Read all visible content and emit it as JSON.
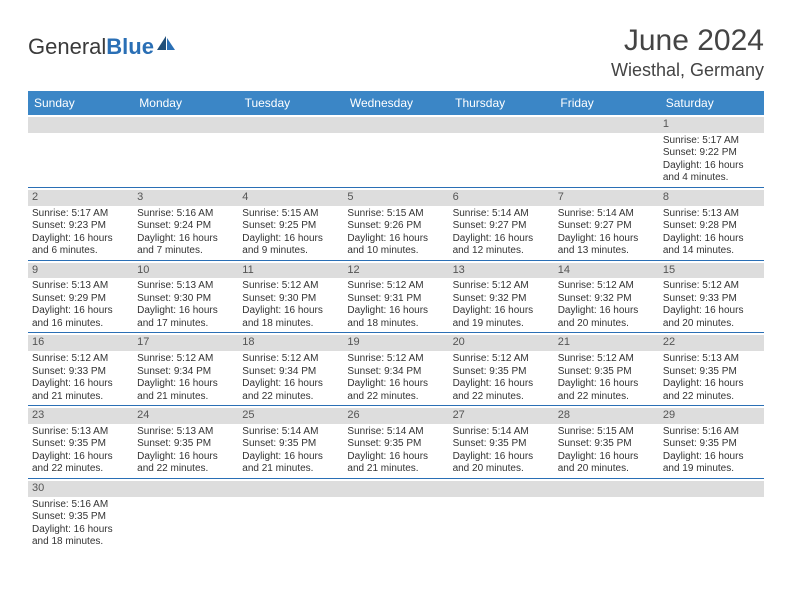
{
  "brand": {
    "textA": "General",
    "textB": "Blue"
  },
  "title": "June 2024",
  "location": "Wiesthal, Germany",
  "weekdays": [
    "Sunday",
    "Monday",
    "Tuesday",
    "Wednesday",
    "Thursday",
    "Friday",
    "Saturday"
  ],
  "colors": {
    "header_bg": "#3b86c6",
    "header_text": "#ffffff",
    "rule": "#2a6fb5",
    "daynum_bg": "#dddddd",
    "text": "#333333"
  },
  "weeks": [
    [
      {
        "blank": true
      },
      {
        "blank": true
      },
      {
        "blank": true
      },
      {
        "blank": true
      },
      {
        "blank": true
      },
      {
        "blank": true
      },
      {
        "n": "1",
        "sunrise": "Sunrise: 5:17 AM",
        "sunset": "Sunset: 9:22 PM",
        "daylight": "Daylight: 16 hours and 4 minutes."
      }
    ],
    [
      {
        "n": "2",
        "sunrise": "Sunrise: 5:17 AM",
        "sunset": "Sunset: 9:23 PM",
        "daylight": "Daylight: 16 hours and 6 minutes."
      },
      {
        "n": "3",
        "sunrise": "Sunrise: 5:16 AM",
        "sunset": "Sunset: 9:24 PM",
        "daylight": "Daylight: 16 hours and 7 minutes."
      },
      {
        "n": "4",
        "sunrise": "Sunrise: 5:15 AM",
        "sunset": "Sunset: 9:25 PM",
        "daylight": "Daylight: 16 hours and 9 minutes."
      },
      {
        "n": "5",
        "sunrise": "Sunrise: 5:15 AM",
        "sunset": "Sunset: 9:26 PM",
        "daylight": "Daylight: 16 hours and 10 minutes."
      },
      {
        "n": "6",
        "sunrise": "Sunrise: 5:14 AM",
        "sunset": "Sunset: 9:27 PM",
        "daylight": "Daylight: 16 hours and 12 minutes."
      },
      {
        "n": "7",
        "sunrise": "Sunrise: 5:14 AM",
        "sunset": "Sunset: 9:27 PM",
        "daylight": "Daylight: 16 hours and 13 minutes."
      },
      {
        "n": "8",
        "sunrise": "Sunrise: 5:13 AM",
        "sunset": "Sunset: 9:28 PM",
        "daylight": "Daylight: 16 hours and 14 minutes."
      }
    ],
    [
      {
        "n": "9",
        "sunrise": "Sunrise: 5:13 AM",
        "sunset": "Sunset: 9:29 PM",
        "daylight": "Daylight: 16 hours and 16 minutes."
      },
      {
        "n": "10",
        "sunrise": "Sunrise: 5:13 AM",
        "sunset": "Sunset: 9:30 PM",
        "daylight": "Daylight: 16 hours and 17 minutes."
      },
      {
        "n": "11",
        "sunrise": "Sunrise: 5:12 AM",
        "sunset": "Sunset: 9:30 PM",
        "daylight": "Daylight: 16 hours and 18 minutes."
      },
      {
        "n": "12",
        "sunrise": "Sunrise: 5:12 AM",
        "sunset": "Sunset: 9:31 PM",
        "daylight": "Daylight: 16 hours and 18 minutes."
      },
      {
        "n": "13",
        "sunrise": "Sunrise: 5:12 AM",
        "sunset": "Sunset: 9:32 PM",
        "daylight": "Daylight: 16 hours and 19 minutes."
      },
      {
        "n": "14",
        "sunrise": "Sunrise: 5:12 AM",
        "sunset": "Sunset: 9:32 PM",
        "daylight": "Daylight: 16 hours and 20 minutes."
      },
      {
        "n": "15",
        "sunrise": "Sunrise: 5:12 AM",
        "sunset": "Sunset: 9:33 PM",
        "daylight": "Daylight: 16 hours and 20 minutes."
      }
    ],
    [
      {
        "n": "16",
        "sunrise": "Sunrise: 5:12 AM",
        "sunset": "Sunset: 9:33 PM",
        "daylight": "Daylight: 16 hours and 21 minutes."
      },
      {
        "n": "17",
        "sunrise": "Sunrise: 5:12 AM",
        "sunset": "Sunset: 9:34 PM",
        "daylight": "Daylight: 16 hours and 21 minutes."
      },
      {
        "n": "18",
        "sunrise": "Sunrise: 5:12 AM",
        "sunset": "Sunset: 9:34 PM",
        "daylight": "Daylight: 16 hours and 22 minutes."
      },
      {
        "n": "19",
        "sunrise": "Sunrise: 5:12 AM",
        "sunset": "Sunset: 9:34 PM",
        "daylight": "Daylight: 16 hours and 22 minutes."
      },
      {
        "n": "20",
        "sunrise": "Sunrise: 5:12 AM",
        "sunset": "Sunset: 9:35 PM",
        "daylight": "Daylight: 16 hours and 22 minutes."
      },
      {
        "n": "21",
        "sunrise": "Sunrise: 5:12 AM",
        "sunset": "Sunset: 9:35 PM",
        "daylight": "Daylight: 16 hours and 22 minutes."
      },
      {
        "n": "22",
        "sunrise": "Sunrise: 5:13 AM",
        "sunset": "Sunset: 9:35 PM",
        "daylight": "Daylight: 16 hours and 22 minutes."
      }
    ],
    [
      {
        "n": "23",
        "sunrise": "Sunrise: 5:13 AM",
        "sunset": "Sunset: 9:35 PM",
        "daylight": "Daylight: 16 hours and 22 minutes."
      },
      {
        "n": "24",
        "sunrise": "Sunrise: 5:13 AM",
        "sunset": "Sunset: 9:35 PM",
        "daylight": "Daylight: 16 hours and 22 minutes."
      },
      {
        "n": "25",
        "sunrise": "Sunrise: 5:14 AM",
        "sunset": "Sunset: 9:35 PM",
        "daylight": "Daylight: 16 hours and 21 minutes."
      },
      {
        "n": "26",
        "sunrise": "Sunrise: 5:14 AM",
        "sunset": "Sunset: 9:35 PM",
        "daylight": "Daylight: 16 hours and 21 minutes."
      },
      {
        "n": "27",
        "sunrise": "Sunrise: 5:14 AM",
        "sunset": "Sunset: 9:35 PM",
        "daylight": "Daylight: 16 hours and 20 minutes."
      },
      {
        "n": "28",
        "sunrise": "Sunrise: 5:15 AM",
        "sunset": "Sunset: 9:35 PM",
        "daylight": "Daylight: 16 hours and 20 minutes."
      },
      {
        "n": "29",
        "sunrise": "Sunrise: 5:16 AM",
        "sunset": "Sunset: 9:35 PM",
        "daylight": "Daylight: 16 hours and 19 minutes."
      }
    ],
    [
      {
        "n": "30",
        "sunrise": "Sunrise: 5:16 AM",
        "sunset": "Sunset: 9:35 PM",
        "daylight": "Daylight: 16 hours and 18 minutes."
      },
      {
        "blank": true
      },
      {
        "blank": true
      },
      {
        "blank": true
      },
      {
        "blank": true
      },
      {
        "blank": true
      },
      {
        "blank": true
      }
    ]
  ]
}
